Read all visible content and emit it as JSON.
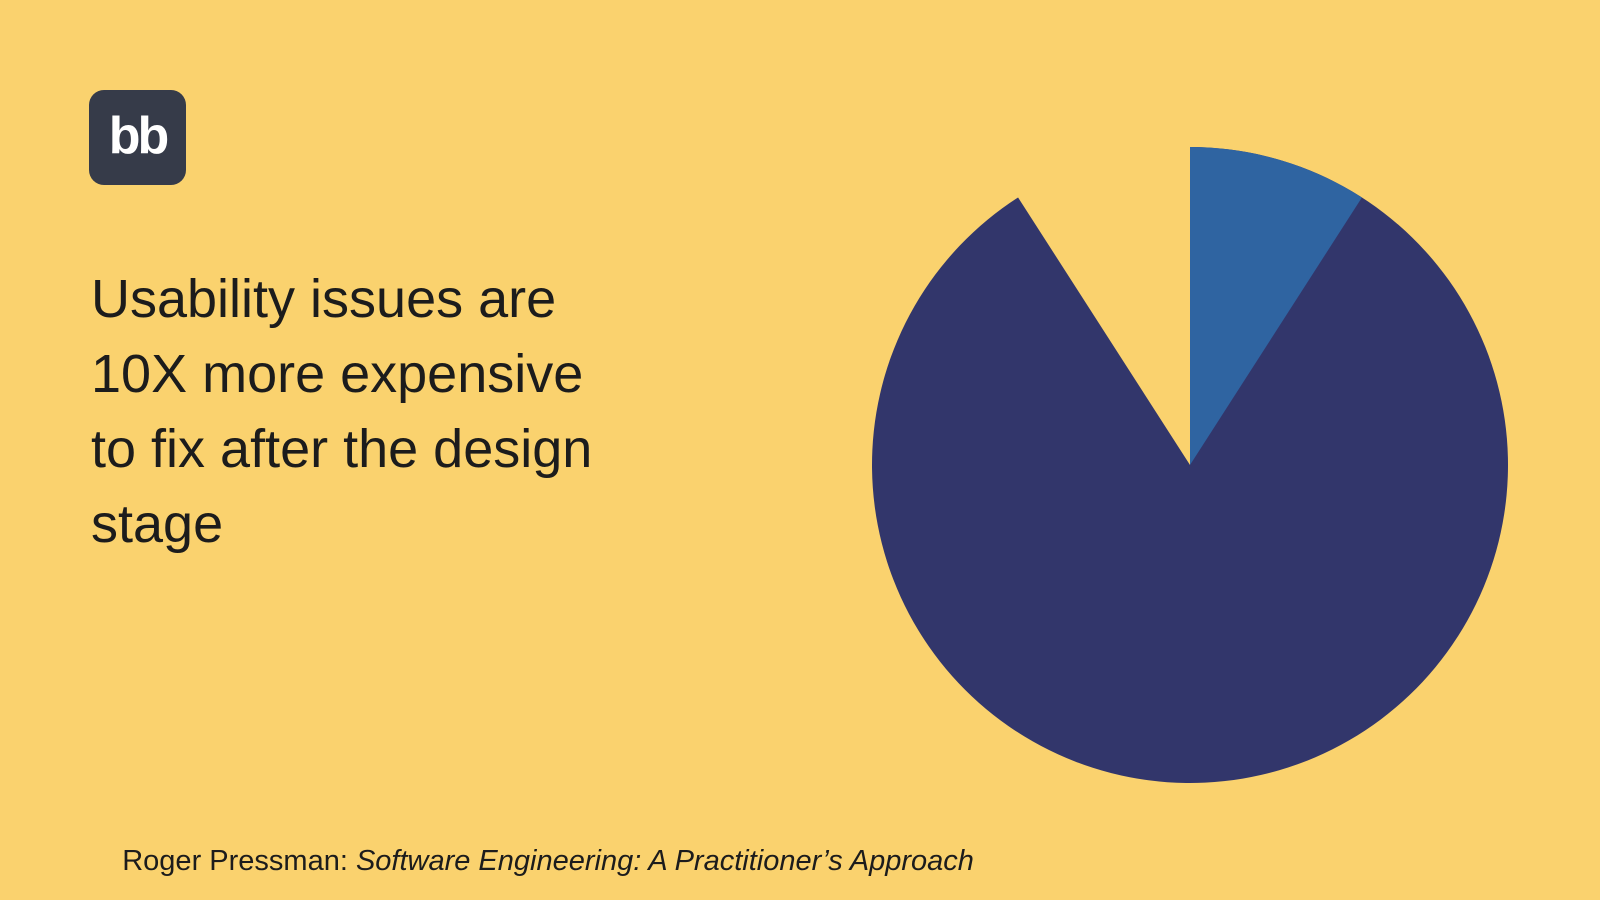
{
  "theme": {
    "background_color": "#FAD26E",
    "text_color": "#1C1C1C"
  },
  "logo": {
    "text": "bb",
    "background_color": "#363B49",
    "text_color": "#FFFFFF"
  },
  "headline": {
    "lines": [
      "Usability issues are",
      "10X more expensive",
      "to fix after the design",
      "stage"
    ]
  },
  "attribution": {
    "prefix": "Roger Pressman: ",
    "book_title": "Software Engineering: A Practitioner’s Approach"
  },
  "chart_data": {
    "type": "pie",
    "title": "",
    "legend": "none",
    "start_angle_deg": 0,
    "direction": "clockwise",
    "slices": [
      {
        "value": 10,
        "color": "#32366B"
      },
      {
        "value": 1,
        "color": "#2F64A1"
      }
    ]
  }
}
